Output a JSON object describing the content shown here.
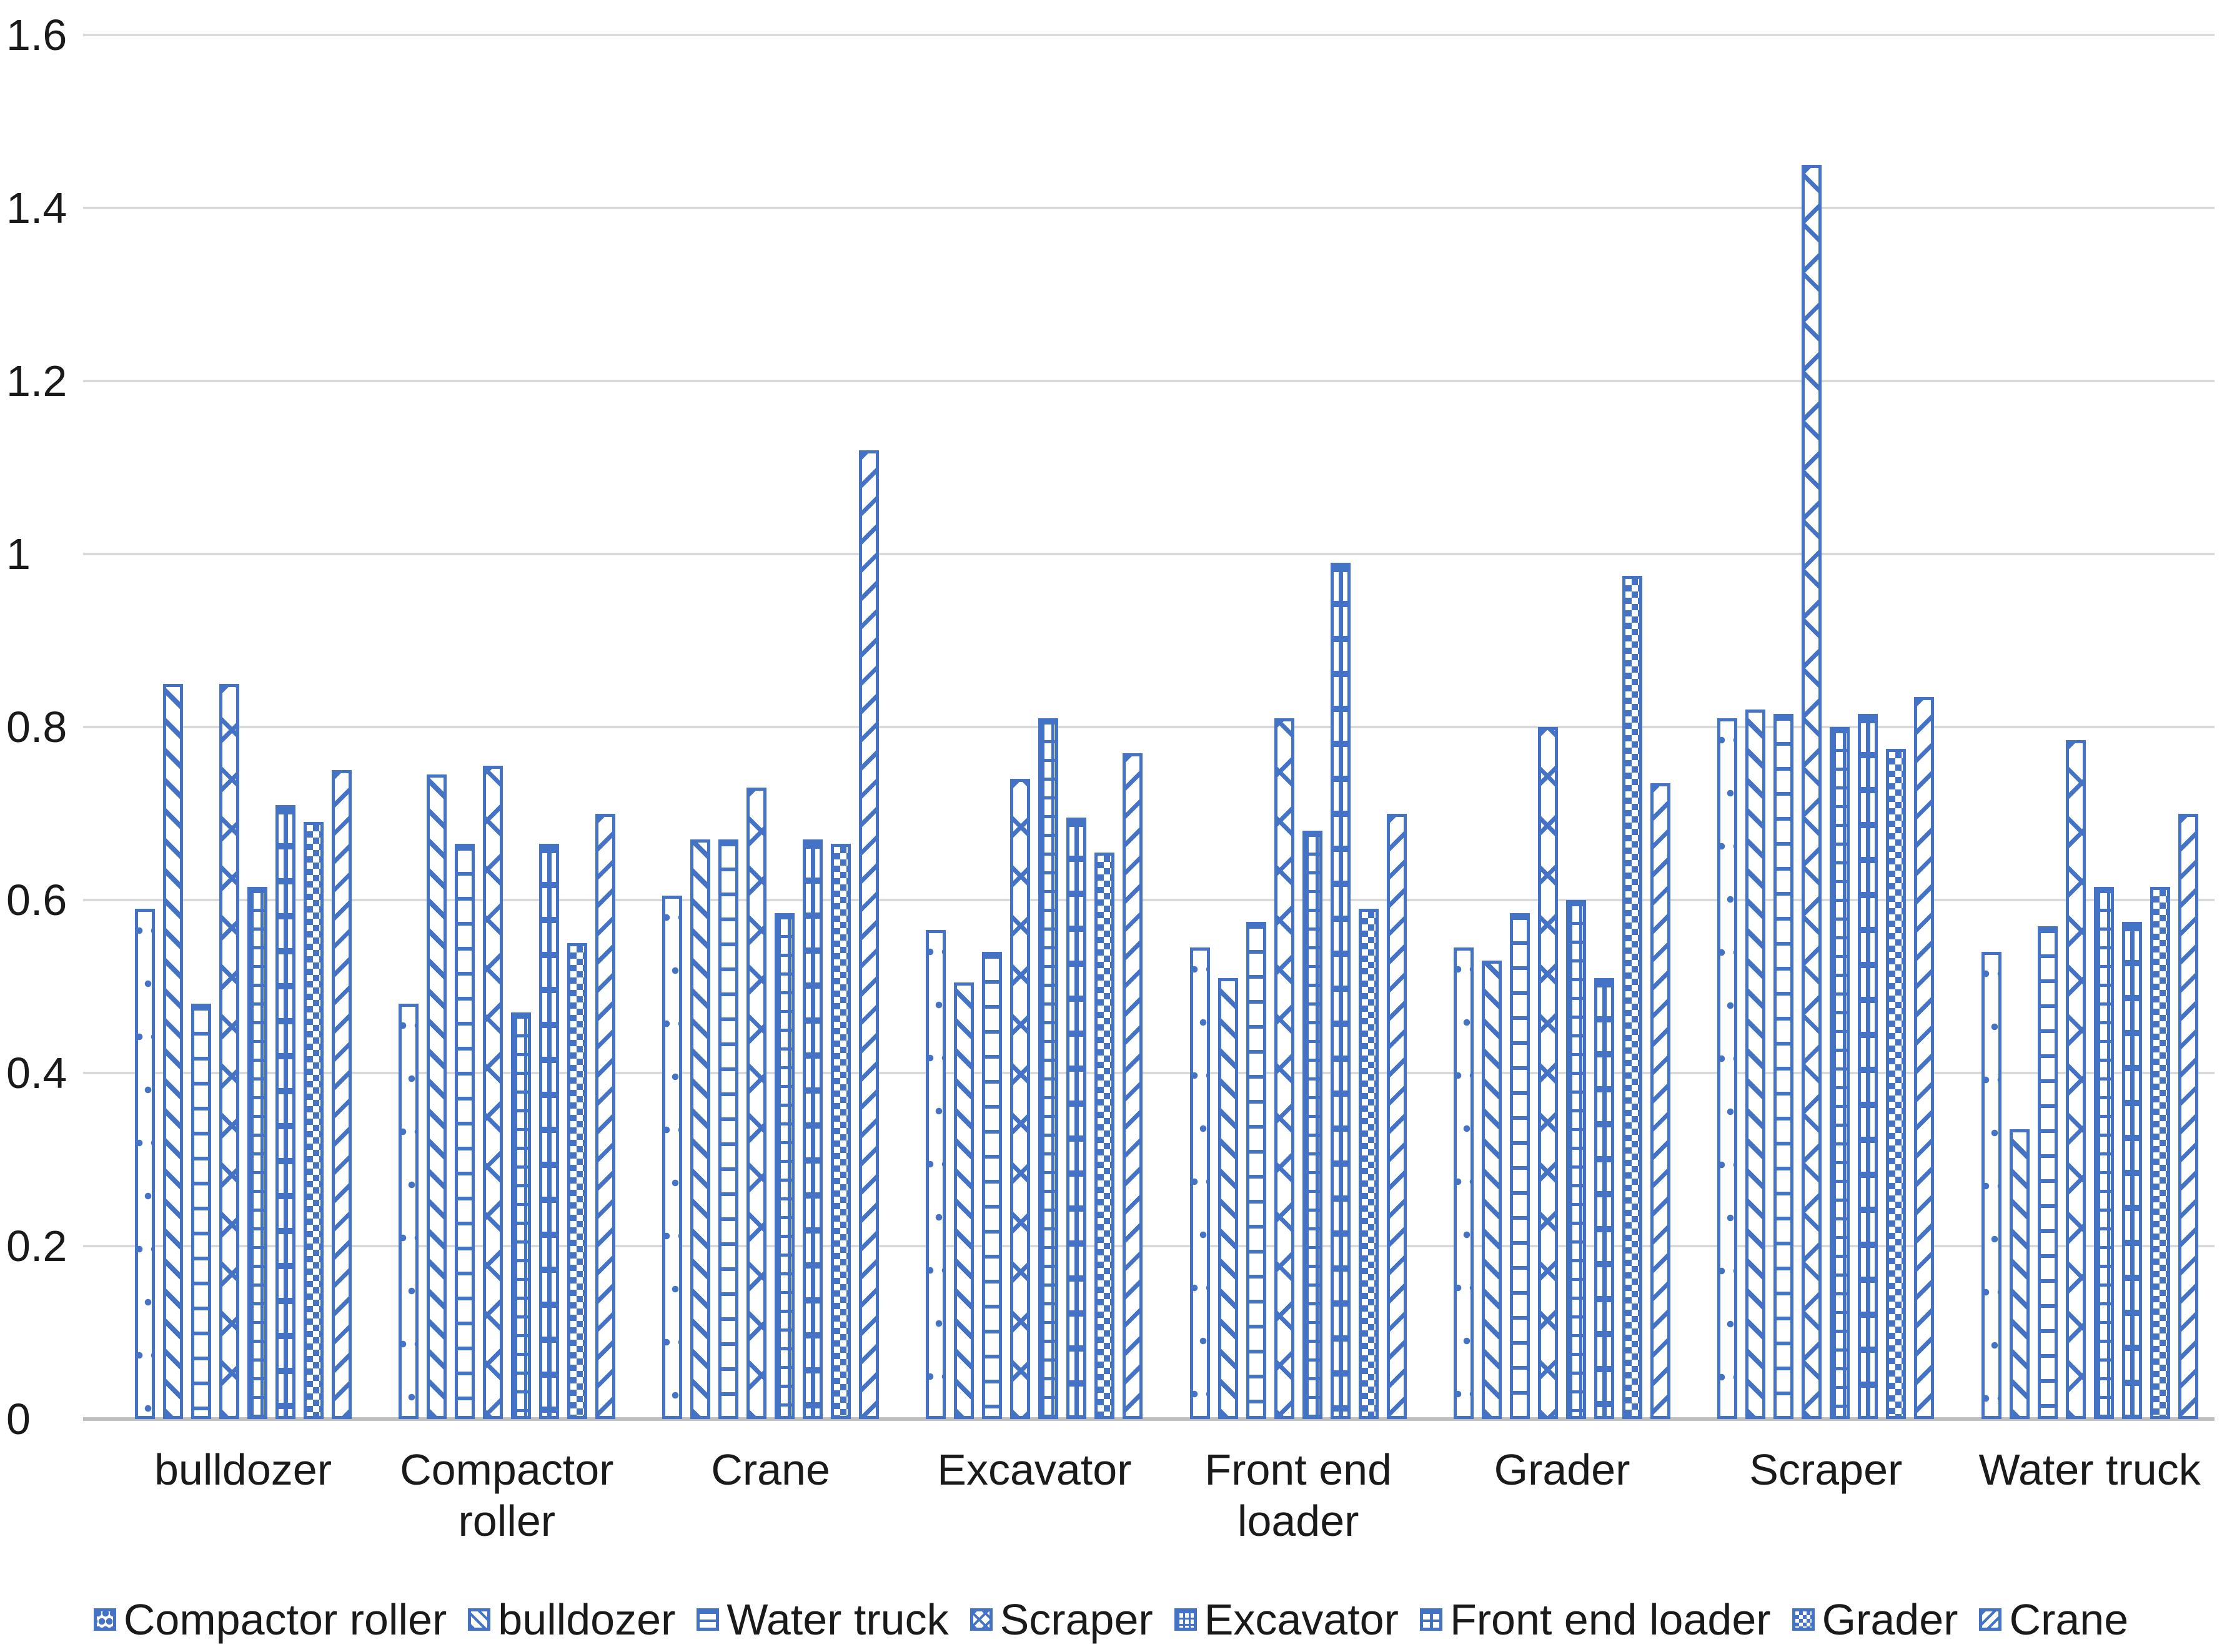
{
  "chart_data": {
    "type": "bar",
    "title": "",
    "xlabel": "",
    "ylabel": "",
    "ylim": [
      0,
      1.6
    ],
    "yticks": [
      "0",
      "0.2",
      "0.4",
      "0.6",
      "0.8",
      "1",
      "1.2",
      "1.4",
      "1.6"
    ],
    "grid": true,
    "legend_position": "bottom",
    "categories": [
      "bulldozer",
      "Compactor roller",
      "Crane",
      "Excavator",
      "Front end loader",
      "Grader",
      "Scraper",
      "Water truck"
    ],
    "series": [
      {
        "name": "Compactor roller",
        "pattern": "dots",
        "values": [
          0.59,
          0.48,
          0.605,
          0.565,
          0.545,
          0.545,
          0.81,
          0.54
        ]
      },
      {
        "name": "bulldozer",
        "pattern": "diagonal-down",
        "values": [
          0.85,
          0.745,
          0.67,
          0.505,
          0.51,
          0.53,
          0.82,
          0.335
        ]
      },
      {
        "name": "Water truck",
        "pattern": "horizontal-lines",
        "values": [
          0.48,
          0.665,
          0.67,
          0.54,
          0.575,
          0.585,
          0.815,
          0.57
        ]
      },
      {
        "name": "Scraper",
        "pattern": "zigzag",
        "values": [
          0.85,
          0.755,
          0.73,
          0.74,
          0.81,
          0.8,
          1.45,
          0.785
        ]
      },
      {
        "name": "Excavator",
        "pattern": "grid",
        "values": [
          0.615,
          0.47,
          0.585,
          0.81,
          0.68,
          0.6,
          0.8,
          0.615
        ]
      },
      {
        "name": "Front end loader",
        "pattern": "ladder",
        "values": [
          0.71,
          0.665,
          0.67,
          0.695,
          0.99,
          0.51,
          0.815,
          0.575
        ]
      },
      {
        "name": "Grader",
        "pattern": "checker",
        "values": [
          0.69,
          0.55,
          0.665,
          0.655,
          0.59,
          0.975,
          0.775,
          0.615
        ]
      },
      {
        "name": "Crane",
        "pattern": "diagonal-up",
        "values": [
          0.75,
          0.7,
          1.12,
          0.77,
          0.7,
          0.735,
          0.835,
          0.7
        ]
      }
    ],
    "colors": {
      "bar_outline": "#4472C4",
      "gridline": "#D9D9D9",
      "axis_line": "#BFBFBF",
      "text": "#1a1a1a",
      "background": "#FFFFFF"
    }
  }
}
